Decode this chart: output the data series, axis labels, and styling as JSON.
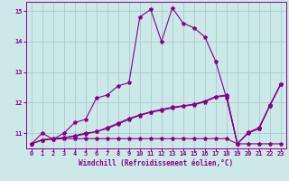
{
  "xlabel": "Windchill (Refroidissement éolien,°C)",
  "bg_color": "#cce8e8",
  "grid_color": "#aacccc",
  "line_color": "#880088",
  "xlim": [
    -0.5,
    23.5
  ],
  "ylim": [
    10.5,
    15.3
  ],
  "xticks": [
    0,
    1,
    2,
    3,
    4,
    5,
    6,
    7,
    8,
    9,
    10,
    11,
    12,
    13,
    14,
    15,
    16,
    17,
    18,
    19,
    20,
    21,
    22,
    23
  ],
  "yticks": [
    11,
    12,
    13,
    14,
    15
  ],
  "series1_x": [
    0,
    1,
    2,
    3,
    4,
    5,
    6,
    7,
    8,
    9,
    10,
    11,
    12,
    13,
    14,
    15,
    16,
    17,
    18,
    19,
    20,
    21,
    22,
    23
  ],
  "series1_y": [
    10.65,
    11.0,
    10.8,
    11.0,
    11.35,
    11.45,
    12.15,
    12.25,
    12.55,
    12.65,
    14.8,
    15.05,
    14.0,
    15.1,
    14.6,
    14.45,
    14.15,
    13.35,
    12.15,
    10.65,
    11.0,
    11.15,
    11.9,
    12.6
  ],
  "series2_x": [
    0,
    1,
    2,
    3,
    4,
    5,
    6,
    7,
    8,
    9,
    10,
    11,
    12,
    13,
    14,
    15,
    16,
    17,
    18,
    19,
    20,
    21,
    22,
    23
  ],
  "series2_y": [
    10.65,
    10.78,
    10.8,
    10.82,
    10.82,
    10.82,
    10.82,
    10.82,
    10.82,
    10.82,
    10.82,
    10.82,
    10.82,
    10.82,
    10.82,
    10.82,
    10.82,
    10.82,
    10.82,
    10.65,
    10.65,
    10.65,
    10.65,
    10.65
  ],
  "series3_x": [
    0,
    1,
    2,
    3,
    4,
    5,
    6,
    7,
    8,
    9,
    10,
    11,
    12,
    13,
    14,
    15,
    16,
    17,
    18,
    19,
    20,
    21,
    22,
    23
  ],
  "series3_y": [
    10.65,
    10.78,
    10.82,
    10.85,
    10.9,
    10.97,
    11.05,
    11.15,
    11.3,
    11.45,
    11.58,
    11.68,
    11.75,
    11.82,
    11.88,
    11.93,
    12.02,
    12.18,
    12.22,
    10.65,
    11.02,
    11.15,
    11.9,
    12.6
  ],
  "series4_x": [
    0,
    1,
    2,
    3,
    4,
    5,
    6,
    7,
    8,
    9,
    10,
    11,
    12,
    13,
    14,
    15,
    16,
    17,
    18,
    19,
    20,
    21,
    22,
    23
  ],
  "series4_y": [
    10.65,
    10.78,
    10.82,
    10.85,
    10.92,
    11.0,
    11.05,
    11.18,
    11.33,
    11.48,
    11.6,
    11.7,
    11.78,
    11.85,
    11.9,
    11.95,
    12.05,
    12.2,
    12.25,
    10.65,
    11.02,
    11.18,
    11.92,
    12.6
  ]
}
